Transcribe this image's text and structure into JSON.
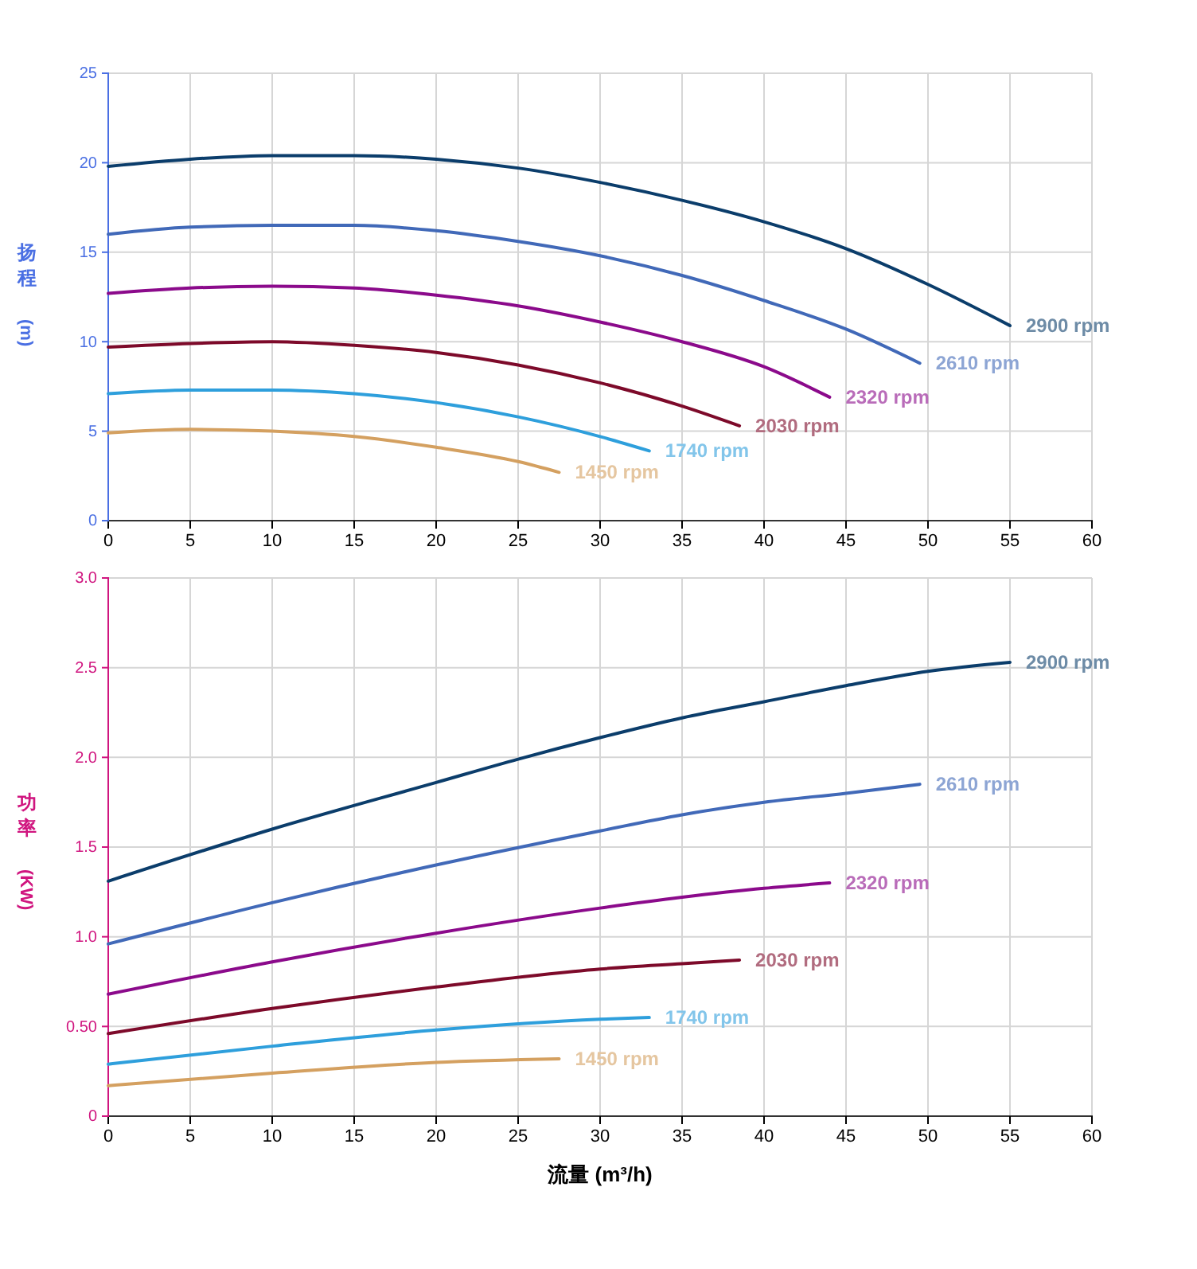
{
  "chart_data": [
    {
      "type": "line",
      "ylabel": "扬程 (m)",
      "xlim": [
        0,
        60
      ],
      "xticks": [
        0,
        5,
        10,
        15,
        20,
        25,
        30,
        35,
        40,
        45,
        50,
        55,
        60
      ],
      "ylim": [
        0,
        25
      ],
      "yticks": [
        0,
        5,
        10,
        15,
        20,
        25
      ],
      "grid": true,
      "marker": "none",
      "line_style": "solid",
      "series": [
        {
          "name": "2900 rpm",
          "color": "#0b3d6b",
          "x": [
            0,
            5,
            10,
            15,
            20,
            25,
            30,
            35,
            40,
            45,
            50,
            55
          ],
          "values": [
            19.8,
            20.2,
            20.4,
            20.4,
            20.2,
            19.7,
            18.9,
            17.9,
            16.7,
            15.2,
            13.2,
            10.9
          ]
        },
        {
          "name": "2610 rpm",
          "color": "#4169b8",
          "x": [
            0,
            5,
            10,
            15,
            20,
            25,
            30,
            35,
            40,
            45,
            49.5
          ],
          "values": [
            16.0,
            16.4,
            16.5,
            16.5,
            16.2,
            15.6,
            14.8,
            13.7,
            12.3,
            10.7,
            8.8
          ]
        },
        {
          "name": "2320 rpm",
          "color": "#8b0a8b",
          "x": [
            0,
            5,
            10,
            15,
            20,
            25,
            30,
            35,
            40,
            44
          ],
          "values": [
            12.7,
            13.0,
            13.1,
            13.0,
            12.6,
            12.0,
            11.1,
            10.0,
            8.6,
            6.9
          ]
        },
        {
          "name": "2030 rpm",
          "color": "#7d0a2a",
          "x": [
            0,
            5,
            10,
            15,
            20,
            25,
            30,
            35,
            38.5
          ],
          "values": [
            9.7,
            9.9,
            10.0,
            9.8,
            9.4,
            8.7,
            7.7,
            6.4,
            5.3
          ]
        },
        {
          "name": "1740 rpm",
          "color": "#2e9fdc",
          "x": [
            0,
            5,
            10,
            15,
            20,
            25,
            30,
            33
          ],
          "values": [
            7.1,
            7.3,
            7.3,
            7.1,
            6.6,
            5.8,
            4.7,
            3.9
          ]
        },
        {
          "name": "1450 rpm",
          "color": "#d4a060",
          "x": [
            0,
            5,
            10,
            15,
            20,
            25,
            27.5
          ],
          "values": [
            4.9,
            5.1,
            5.0,
            4.7,
            4.1,
            3.3,
            2.7
          ]
        }
      ]
    },
    {
      "type": "line",
      "xlabel": "流量 (m³/h)",
      "ylabel": "功率 (KW)",
      "xlim": [
        0,
        60
      ],
      "xticks": [
        0,
        5,
        10,
        15,
        20,
        25,
        30,
        35,
        40,
        45,
        50,
        55,
        60
      ],
      "ylim": [
        0,
        3
      ],
      "yticks": [
        0,
        {
          "value": 0.5,
          "label": "0.50"
        },
        {
          "value": 1,
          "label": "1.0"
        },
        1.5,
        {
          "value": 2,
          "label": "2.0"
        },
        2.5,
        {
          "value": 3,
          "label": "3.0"
        }
      ],
      "grid": true,
      "marker": "none",
      "line_style": "solid",
      "series": [
        {
          "name": "2900 rpm",
          "color": "#0b3d6b",
          "x": [
            0,
            10,
            20,
            25,
            30,
            35,
            40,
            45,
            50,
            55
          ],
          "values": [
            1.31,
            1.6,
            1.86,
            1.99,
            2.11,
            2.22,
            2.31,
            2.4,
            2.48,
            2.53
          ]
        },
        {
          "name": "2610 rpm",
          "color": "#4169b8",
          "x": [
            0,
            10,
            20,
            30,
            35,
            40,
            45,
            49.5
          ],
          "values": [
            0.96,
            1.19,
            1.4,
            1.59,
            1.68,
            1.75,
            1.8,
            1.85
          ]
        },
        {
          "name": "2320 rpm",
          "color": "#8b0a8b",
          "x": [
            0,
            10,
            20,
            30,
            35,
            40,
            44
          ],
          "values": [
            0.68,
            0.86,
            1.02,
            1.16,
            1.22,
            1.27,
            1.3
          ]
        },
        {
          "name": "2030 rpm",
          "color": "#7d0a2a",
          "x": [
            0,
            10,
            20,
            30,
            35,
            38.5
          ],
          "values": [
            0.46,
            0.6,
            0.72,
            0.82,
            0.85,
            0.87
          ]
        },
        {
          "name": "1740 rpm",
          "color": "#2e9fdc",
          "x": [
            0,
            10,
            20,
            30,
            33
          ],
          "values": [
            0.29,
            0.39,
            0.48,
            0.54,
            0.55
          ]
        },
        {
          "name": "1450 rpm",
          "color": "#d4a060",
          "x": [
            0,
            10,
            20,
            27.5
          ],
          "values": [
            0.17,
            0.24,
            0.3,
            0.32
          ]
        }
      ]
    }
  ]
}
